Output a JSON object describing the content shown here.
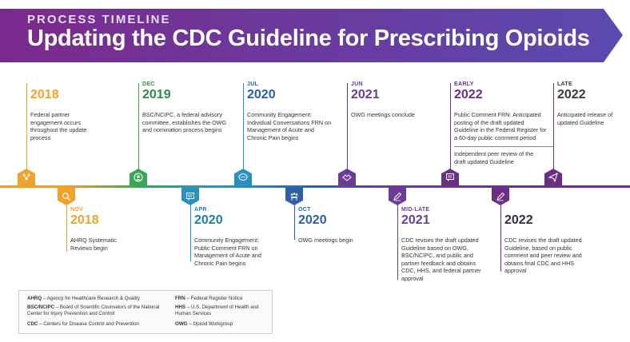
{
  "header": {
    "kicker": "PROCESS TIMELINE",
    "title": "Updating the CDC Guideline for Prescribing Opioids"
  },
  "colors": {
    "orange": "#f0a22b",
    "green": "#3aa655",
    "blue": "#2a5ea8",
    "teal": "#1f7fa8",
    "purple": "#6b3c96",
    "dark_purple": "#6a2f83"
  },
  "events_top": [
    {
      "month": "",
      "year": "2018",
      "desc": "Federal partner engagement occurs throughout the update process",
      "icon": "network-people-icon"
    },
    {
      "month": "DEC",
      "year": "2019",
      "desc": "BSC/NCIPC, a federal advisory committee, establishes the OWG and nomination process begins",
      "icon": "person-circle-icon"
    },
    {
      "month": "JUL",
      "year": "2020",
      "desc": "Community Engagement: Individual Conversations FRN on Management of Acute and Chronic Pain begins",
      "icon": "speech-bubble-icon"
    },
    {
      "month": "JUN",
      "year": "2021",
      "desc": "OWG meetings conclude",
      "icon": "handshake-icon"
    },
    {
      "month": "EARLY",
      "year": "2022",
      "desc": "Public Comment FRN: Anticipated posting of the draft updated Guideline in the Federal Register for a 60-day public comment period",
      "desc2": "Independent peer review of the draft updated Guideline",
      "icon": "comment-box-icon"
    },
    {
      "month": "LATE",
      "year": "2022",
      "desc": "Anticipated release of updated Guideline",
      "icon": "paper-plane-icon"
    }
  ],
  "events_bottom": [
    {
      "month": "NOV",
      "year": "2018",
      "desc": "AHRQ Systematic Reviews begin",
      "icon": "magnifier-icon"
    },
    {
      "month": "APR",
      "year": "2020",
      "desc": "Community Engagement: Public Comment FRN on Management of Acute and Chronic Pain begins",
      "icon": "comment-box-icon"
    },
    {
      "month": "OCT",
      "year": "2020",
      "desc": "OWG meetings begin",
      "icon": "group-meeting-icon"
    },
    {
      "month": "MID-LATE",
      "year": "2021",
      "desc": "CDC revises the draft updated Guideline based on OWG, BSC/NCIPC, and public and partner feedback and obtains CDC, HHS, and federal partner approval",
      "icon": "pencil-icon"
    },
    {
      "month": "",
      "year": "2022",
      "desc": "CDC revises the draft updated Guideline, based on public comment and peer review and obtains final CDC and HHS approval",
      "icon": "pencil-icon"
    }
  ],
  "legend": [
    {
      "abbr": "AHRQ",
      "text": " – Agency for Healthcare Research & Quality"
    },
    {
      "abbr": "BSC/NCIPC",
      "text": " – Board of Scientific Counselors of the National Center for Injury Prevention and Control"
    },
    {
      "abbr": "CDC",
      "text": " – Centers for Disease Control and Prevention"
    },
    {
      "abbr": "FRN",
      "text": " – Federal Register Notice"
    },
    {
      "abbr": "HHS",
      "text": " – U.S. Department of Health and Human Services"
    },
    {
      "abbr": "OWG",
      "text": " – Opioid Workgroup"
    }
  ]
}
